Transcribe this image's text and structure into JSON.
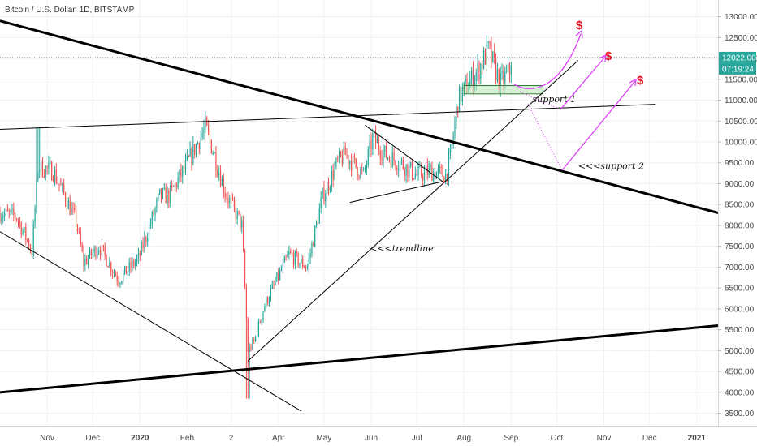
{
  "chart_data": {
    "type": "candlestick",
    "title": "Bitcoin / U.S. Dollar, 1D, BITSTAMP",
    "y_ticks": [
      3500,
      4000,
      4500,
      5000,
      5500,
      6000,
      6500,
      7000,
      7500,
      8000,
      8500,
      9000,
      9500,
      10000,
      10500,
      11000,
      11500,
      12000,
      12500,
      13000
    ],
    "y_tick_labels": [
      "3500.00",
      "4000.00",
      "4500.00",
      "5000.00",
      "5500.00",
      "6000.00",
      "6500.00",
      "7000.00",
      "7500.00",
      "8000.00",
      "8500.00",
      "9000.00",
      "9500.00",
      "10000.00",
      "10500.00",
      "11000.00",
      "11500.00",
      "12000.00",
      "12500.00",
      "13000.00"
    ],
    "x_tick_labels": [
      "Nov",
      "Dec",
      "2020",
      "Feb",
      "2",
      "Apr",
      "May",
      "Jun",
      "Jul",
      "Aug",
      "Sep",
      "Oct",
      "Nov",
      "Dec",
      "2021"
    ],
    "x_tick_dates": [
      "2019-11-01",
      "2019-12-01",
      "2020-01-01",
      "2020-02-01",
      "2020-03-01",
      "2020-04-01",
      "2020-05-01",
      "2020-06-01",
      "2020-07-01",
      "2020-08-01",
      "2020-09-01",
      "2020-10-01",
      "2020-11-01",
      "2020-12-01",
      "2021-01-01"
    ],
    "date_start": "2019-10-01",
    "date_end": "2021-01-15",
    "ylim": [
      3200,
      13400
    ],
    "current_price": "12022.00",
    "countdown": "07:19:24",
    "up_color": "#26a69a",
    "down_color": "#ef5350",
    "key_points": [
      {
        "date": "2019-10-01",
        "price": 8300
      },
      {
        "date": "2019-10-12",
        "price": 8200
      },
      {
        "date": "2019-10-22",
        "price": 7400
      },
      {
        "date": "2019-10-26",
        "price": 9400
      },
      {
        "date": "2019-11-05",
        "price": 9300
      },
      {
        "date": "2019-11-20",
        "price": 8100
      },
      {
        "date": "2019-11-25",
        "price": 7100
      },
      {
        "date": "2019-12-05",
        "price": 7500
      },
      {
        "date": "2019-12-18",
        "price": 6700
      },
      {
        "date": "2019-12-31",
        "price": 7200
      },
      {
        "date": "2020-01-14",
        "price": 8700
      },
      {
        "date": "2020-01-20",
        "price": 8700
      },
      {
        "date": "2020-01-31",
        "price": 9400
      },
      {
        "date": "2020-02-13",
        "price": 10350
      },
      {
        "date": "2020-02-18",
        "price": 9800
      },
      {
        "date": "2020-02-26",
        "price": 8800
      },
      {
        "date": "2020-03-08",
        "price": 8000
      },
      {
        "date": "2020-03-12",
        "price": 5000
      },
      {
        "date": "2020-03-16",
        "price": 5200
      },
      {
        "date": "2020-03-23",
        "price": 6100
      },
      {
        "date": "2020-04-08",
        "price": 7300
      },
      {
        "date": "2020-04-20",
        "price": 7000
      },
      {
        "date": "2020-04-30",
        "price": 8700
      },
      {
        "date": "2020-05-10",
        "price": 9500
      },
      {
        "date": "2020-05-15",
        "price": 9700
      },
      {
        "date": "2020-05-27",
        "price": 9200
      },
      {
        "date": "2020-06-02",
        "price": 10100
      },
      {
        "date": "2020-06-10",
        "price": 9700
      },
      {
        "date": "2020-06-20",
        "price": 9500
      },
      {
        "date": "2020-07-01",
        "price": 9200
      },
      {
        "date": "2020-07-10",
        "price": 9300
      },
      {
        "date": "2020-07-20",
        "price": 9200
      },
      {
        "date": "2020-07-23",
        "price": 9600
      },
      {
        "date": "2020-07-28",
        "price": 11000
      },
      {
        "date": "2020-08-02",
        "price": 11300
      },
      {
        "date": "2020-08-10",
        "price": 11700
      },
      {
        "date": "2020-08-17",
        "price": 12200
      },
      {
        "date": "2020-08-25",
        "price": 11400
      },
      {
        "date": "2020-08-31",
        "price": 11700
      },
      {
        "date": "2020-09-01",
        "price": 12000
      }
    ],
    "drawings": [
      {
        "name": "trendline-upper-descending",
        "points": [
          [
            "2019-10-01",
            12900
          ],
          [
            "2021-01-15",
            8300
          ]
        ],
        "width": 3
      },
      {
        "name": "trendline-lower-ascending",
        "points": [
          [
            "2019-10-01",
            4000
          ],
          [
            "2021-01-15",
            5600
          ]
        ],
        "width": 3
      },
      {
        "name": "trendline-resistance-horizontal",
        "points": [
          [
            "2019-10-01",
            10300
          ],
          [
            "2020-12-05",
            10900
          ]
        ],
        "width": 1
      },
      {
        "name": "trendline-lower-descending",
        "points": [
          [
            "2019-10-01",
            7850
          ],
          [
            "2020-04-16",
            3550
          ]
        ],
        "width": 1
      },
      {
        "name": "trendline-rising",
        "points": [
          [
            "2020-03-12",
            4750
          ],
          [
            "2020-10-15",
            11950
          ]
        ],
        "width": 1
      },
      {
        "name": "triangle-upper",
        "points": [
          [
            "2020-05-28",
            10400
          ],
          [
            "2020-07-18",
            9050
          ]
        ],
        "width": 1
      },
      {
        "name": "triangle-lower",
        "points": [
          [
            "2020-05-18",
            8550
          ],
          [
            "2020-07-18",
            9050
          ]
        ],
        "width": 1
      }
    ],
    "annotations": [
      {
        "text": "support 1",
        "date": "2020-09-15",
        "price": 10950
      },
      {
        "text": "<<<support 2",
        "date": "2020-10-15",
        "price": 9350
      },
      {
        "text": "<<<trendline",
        "date": "2020-05-31",
        "price": 7380
      }
    ],
    "targets": [
      "$",
      "$",
      "$"
    ]
  }
}
